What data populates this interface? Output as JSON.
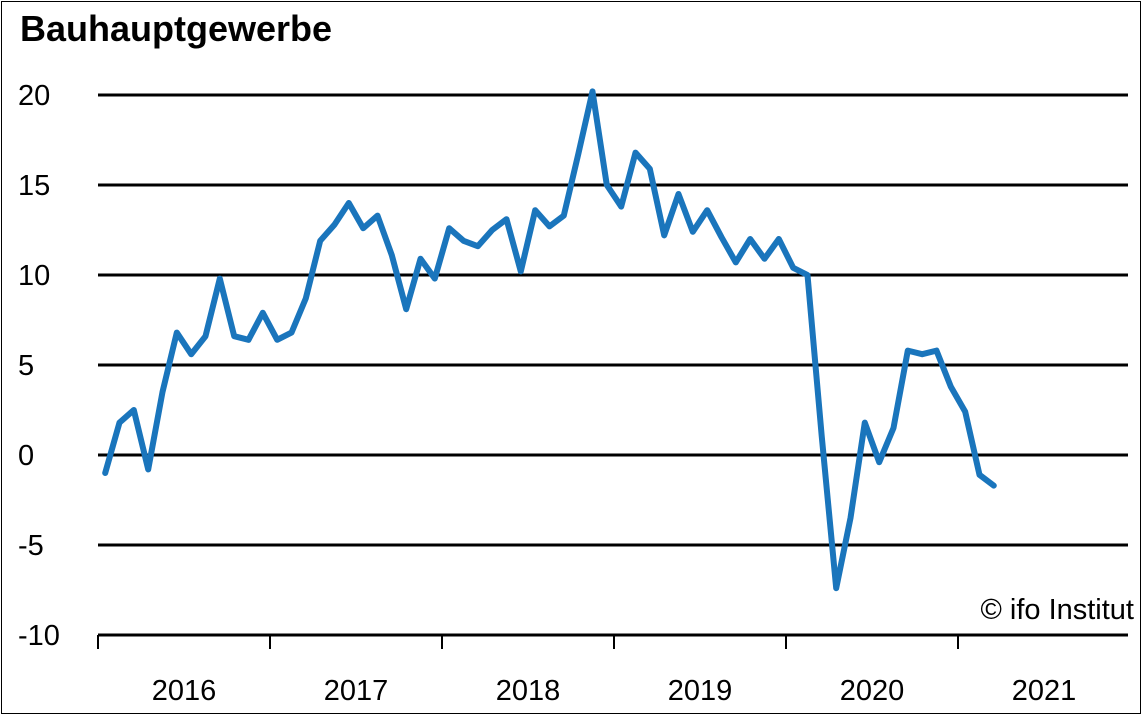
{
  "chart_data": {
    "type": "line",
    "title": "Bauhauptgewerbe",
    "xlabel": "",
    "ylabel": "",
    "ylim": [
      -10,
      20
    ],
    "yticks": [
      20,
      15,
      10,
      5,
      0,
      -5,
      -10
    ],
    "year_labels": [
      "2016",
      "2017",
      "2018",
      "2019",
      "2020",
      "2021"
    ],
    "x_start": "2016-01",
    "grid": "horizontal",
    "line_color": "#1a75bc",
    "series": [
      {
        "values": [
          -1,
          1.8,
          2.5,
          -0.8,
          3.5,
          6.8,
          5.6,
          6.6,
          9.8,
          6.6,
          6.4,
          7.9,
          6.4,
          6.8,
          8.7,
          11.9,
          12.8,
          14.0,
          12.6,
          13.3,
          11.1,
          8.1,
          10.9,
          9.8,
          12.6,
          11.9,
          11.6,
          12.5,
          13.1,
          10.2,
          13.6,
          12.7,
          13.3,
          16.7,
          20.2,
          15.0,
          13.8,
          16.8,
          15.9,
          12.2,
          14.5,
          12.4,
          13.6,
          12.1,
          10.7,
          12.0,
          10.9,
          12.0,
          10.4,
          10.0,
          1.0,
          -7.4,
          -3.5,
          1.8,
          -0.4,
          1.5,
          5.8,
          5.6,
          5.8,
          3.8,
          2.4,
          -1.1,
          -1.7
        ]
      }
    ],
    "copyright": "© ifo Institut"
  }
}
